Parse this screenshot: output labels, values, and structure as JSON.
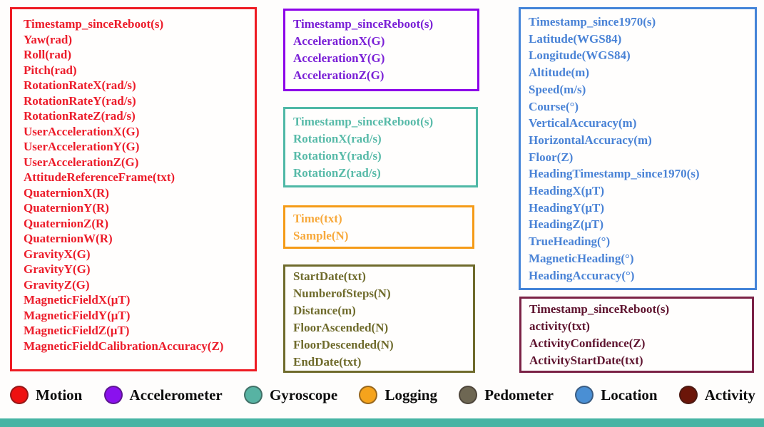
{
  "groups": [
    {
      "name": "Motion",
      "border_color": "#ee1b23",
      "text_color": "#ec1c2a",
      "fields": [
        "Timestamp_sinceReboot(s)",
        "Yaw(rad)",
        "Roll(rad)",
        "Pitch(rad)",
        "RotationRateX(rad/s)",
        "RotationRateY(rad/s)",
        "RotationRateZ(rad/s)",
        "UserAccelerationX(G)",
        "UserAccelerationY(G)",
        "UserAccelerationZ(G)",
        "AttitudeReferenceFrame(txt)",
        "QuaternionX(R)",
        "QuaternionY(R)",
        "QuaternionZ(R)",
        "QuaternionW(R)",
        "GravityX(G)",
        "GravityY(G)",
        "GravityZ(G)",
        "MagneticFieldX(μT)",
        "MagneticFieldY(μT)",
        "MagneticFieldZ(μT)",
        "MagneticFieldCalibrationAccuracy(Z)"
      ]
    },
    {
      "name": "Accelerometer",
      "border_color": "#8c00e8",
      "text_color": "#7a1fd6",
      "fields": [
        "Timestamp_sinceReboot(s)",
        "AccelerationX(G)",
        "AccelerationY(G)",
        "AccelerationZ(G)"
      ]
    },
    {
      "name": "Gyroscope",
      "border_color": "#4fb8a6",
      "text_color": "#57baa8",
      "fields": [
        "Timestamp_sinceReboot(s)",
        "RotationX(rad/s)",
        "RotationY(rad/s)",
        "RotationZ(rad/s)"
      ]
    },
    {
      "name": "Logging",
      "border_color": "#f59b17",
      "text_color": "#f7a93c",
      "fields": [
        "Time(txt)",
        "Sample(N)"
      ]
    },
    {
      "name": "Pedometer",
      "border_color": "#6f6b2c",
      "text_color": "#6f6b2c",
      "fields": [
        "StartDate(txt)",
        "NumberofSteps(N)",
        "Distance(m)",
        "FloorAscended(N)",
        "FloorDescended(N)",
        "EndDate(txt)"
      ]
    },
    {
      "name": "Location",
      "border_color": "#4484d8",
      "text_color": "#4a83d6",
      "fields": [
        "Timestamp_since1970(s)",
        "Latitude(WGS84)",
        "Longitude(WGS84)",
        "Altitude(m)",
        "Speed(m/s)",
        "Course(°)",
        "VerticalAccuracy(m)",
        "HorizontalAccuracy(m)",
        "Floor(Z)",
        "HeadingTimestamp_since1970(s)",
        "HeadingX(μT)",
        "HeadingY(μT)",
        "HeadingZ(μT)",
        "TrueHeading(°)",
        "MagneticHeading(°)",
        "HeadingAccuracy(°)"
      ]
    },
    {
      "name": "Activity",
      "border_color": "#7b2246",
      "text_color": "#5f142f",
      "fields": [
        "Timestamp_sinceReboot(s)",
        "activity(txt)",
        "ActivityConfidence(Z)",
        "ActivityStartDate(txt)"
      ]
    }
  ],
  "legend": [
    {
      "label": "Motion",
      "color": "#ee1111"
    },
    {
      "label": "Accelerometer",
      "color": "#8a11ee"
    },
    {
      "label": "Gyroscope",
      "color": "#57b3a3"
    },
    {
      "label": "Logging",
      "color": "#f5a31c"
    },
    {
      "label": "Pedometer",
      "color": "#6e6753"
    },
    {
      "label": "Location",
      "color": "#4a8fd4"
    },
    {
      "label": "Activity",
      "color": "#6b1509"
    }
  ],
  "footer": {
    "bar_color": "#47b4a4"
  }
}
